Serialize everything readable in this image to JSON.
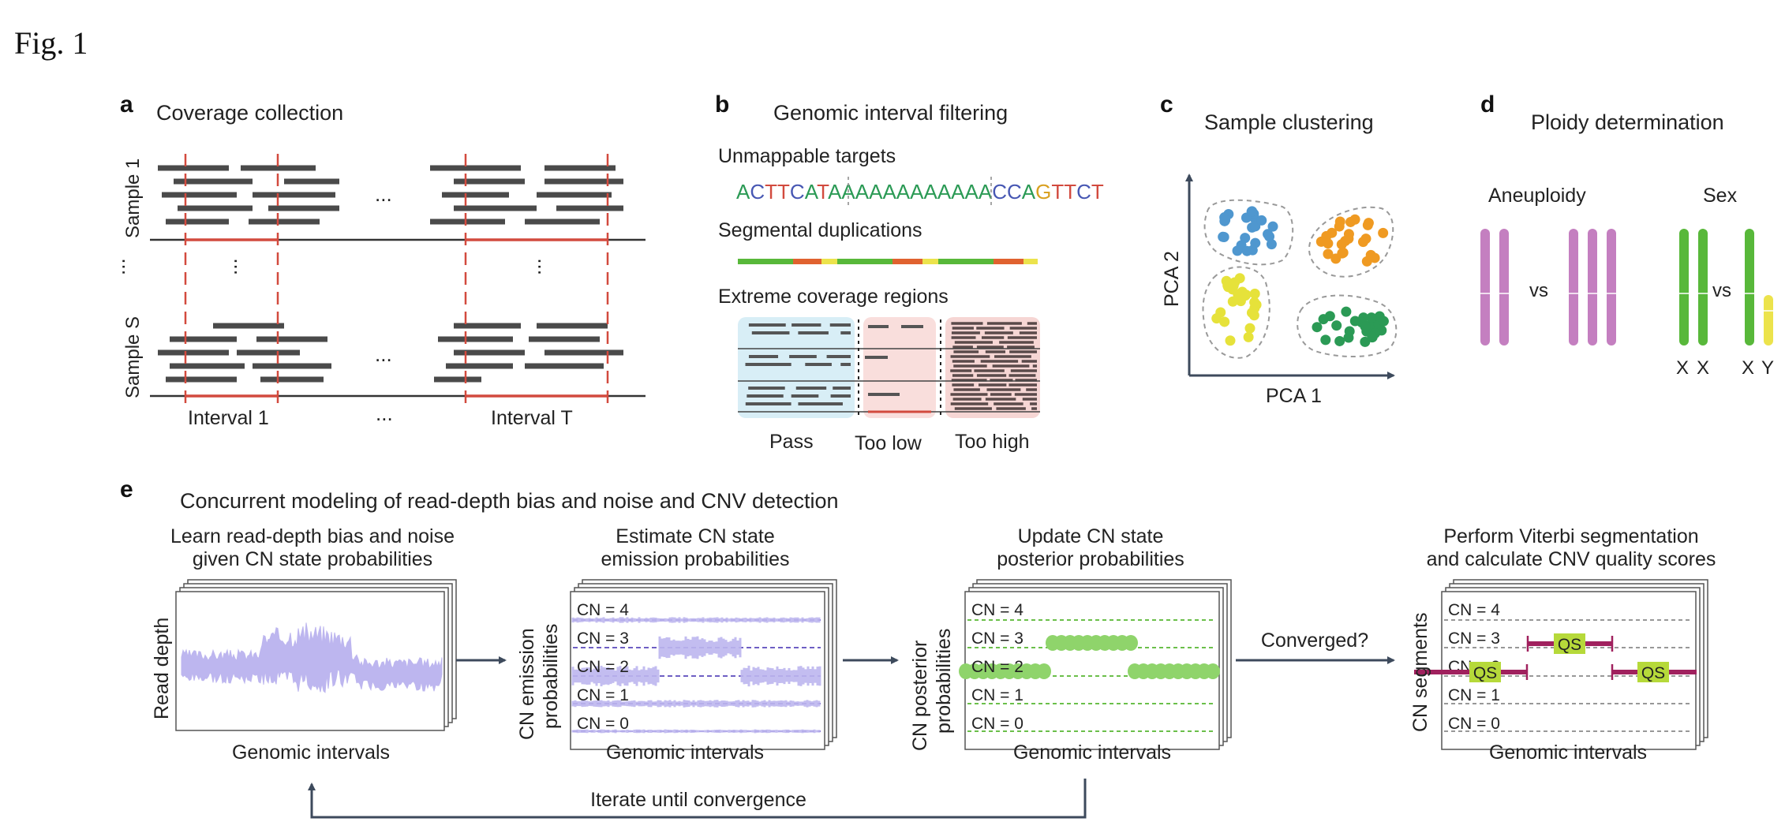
{
  "figure_label": "Fig. 1",
  "colors": {
    "read": "#4a4a4a",
    "red": "#d24a3e",
    "axis": "#3d4a5c",
    "blue_dot": "#4f97cf",
    "orange_dot": "#ef9a22",
    "yellow_dot": "#e6e23a",
    "green_dot": "#2b9a55",
    "purple_chrom": "#c47fc0",
    "green_chrom": "#58b83a",
    "yellow_chrom": "#ece34c",
    "lavender": "#bdb6ef",
    "dash_purple": "#6e5fc4",
    "post_green": "#8fd46b",
    "seg_magenta": "#a0215e",
    "qs_box": "#b6d93a",
    "pass_bg": "#d8eef6",
    "low_bg": "#f9dedc",
    "high_bg": "#f6d6d4"
  },
  "panel_a": {
    "letter": "a",
    "title": "Coverage collection",
    "sample_1": "Sample 1",
    "sample_s": "Sample S",
    "interval_1": "Interval 1",
    "interval_t": "Interval T",
    "ellipsis": "..."
  },
  "panel_b": {
    "letter": "b",
    "title": "Genomic interval filtering",
    "unmappable": "Unmappable targets",
    "sequence": [
      {
        "ch": "A",
        "c": "#2b9a55"
      },
      {
        "ch": "C",
        "c": "#4757b3"
      },
      {
        "ch": "T",
        "c": "#d24a3e"
      },
      {
        "ch": "T",
        "c": "#d24a3e"
      },
      {
        "ch": "C",
        "c": "#4757b3"
      },
      {
        "ch": "A",
        "c": "#2b9a55"
      },
      {
        "ch": "T",
        "c": "#d24a3e"
      },
      {
        "ch": "A",
        "c": "#2b9a55"
      },
      {
        "ch": "A",
        "c": "#2b9a55"
      },
      {
        "ch": "A",
        "c": "#2b9a55"
      },
      {
        "ch": "A",
        "c": "#2b9a55"
      },
      {
        "ch": "A",
        "c": "#2b9a55"
      },
      {
        "ch": "A",
        "c": "#2b9a55"
      },
      {
        "ch": "A",
        "c": "#2b9a55"
      },
      {
        "ch": "A",
        "c": "#2b9a55"
      },
      {
        "ch": "A",
        "c": "#2b9a55"
      },
      {
        "ch": "A",
        "c": "#2b9a55"
      },
      {
        "ch": "A",
        "c": "#2b9a55"
      },
      {
        "ch": "A",
        "c": "#2b9a55"
      },
      {
        "ch": "C",
        "c": "#4757b3"
      },
      {
        "ch": "C",
        "c": "#4757b3"
      },
      {
        "ch": "A",
        "c": "#2b9a55"
      },
      {
        "ch": "G",
        "c": "#d9a020"
      },
      {
        "ch": "T",
        "c": "#d24a3e"
      },
      {
        "ch": "T",
        "c": "#d24a3e"
      },
      {
        "ch": "C",
        "c": "#4757b3"
      },
      {
        "ch": "T",
        "c": "#d24a3e"
      }
    ],
    "segdup": "Segmental duplications",
    "extreme": "Extreme coverage regions",
    "pass": "Pass",
    "too_low": "Too low",
    "too_high": "Too high"
  },
  "panel_c": {
    "letter": "c",
    "title": "Sample clustering",
    "xlabel": "PCA 1",
    "ylabel": "PCA 2"
  },
  "panel_d": {
    "letter": "d",
    "title": "Ploidy determination",
    "aneuploidy": "Aneuploidy",
    "sex": "Sex",
    "vs": "vs",
    "x1": "X",
    "x2": "X",
    "x3": "X",
    "y": "Y"
  },
  "panel_e": {
    "letter": "e",
    "title": "Concurrent modeling of read-depth bias and noise and CNV detection",
    "step1_line1": "Learn read-depth bias and noise",
    "step1_line2": "given CN state probabilities",
    "step1_ylabel": "Read depth",
    "step2_line1": "Estimate CN state",
    "step2_line2": "emission probabilities",
    "step2_ylabel_1": "CN emission",
    "step2_ylabel_2": "probabilities",
    "step3_line1": "Update CN state",
    "step3_line2": "posterior probabilities",
    "step3_ylabel_1": "CN posterior",
    "step3_ylabel_2": "probabilities",
    "step4_line1": "Perform Viterbi segmentation",
    "step4_line2": "and calculate CNV quality scores",
    "step4_ylabel": "CN segments",
    "xlabel": "Genomic intervals",
    "cn_labels": [
      "CN = 4",
      "CN = 3",
      "CN = 2",
      "CN = 1",
      "CN = 0"
    ],
    "converged": "Converged?",
    "iterate": "Iterate until convergence",
    "qs": "QS"
  }
}
